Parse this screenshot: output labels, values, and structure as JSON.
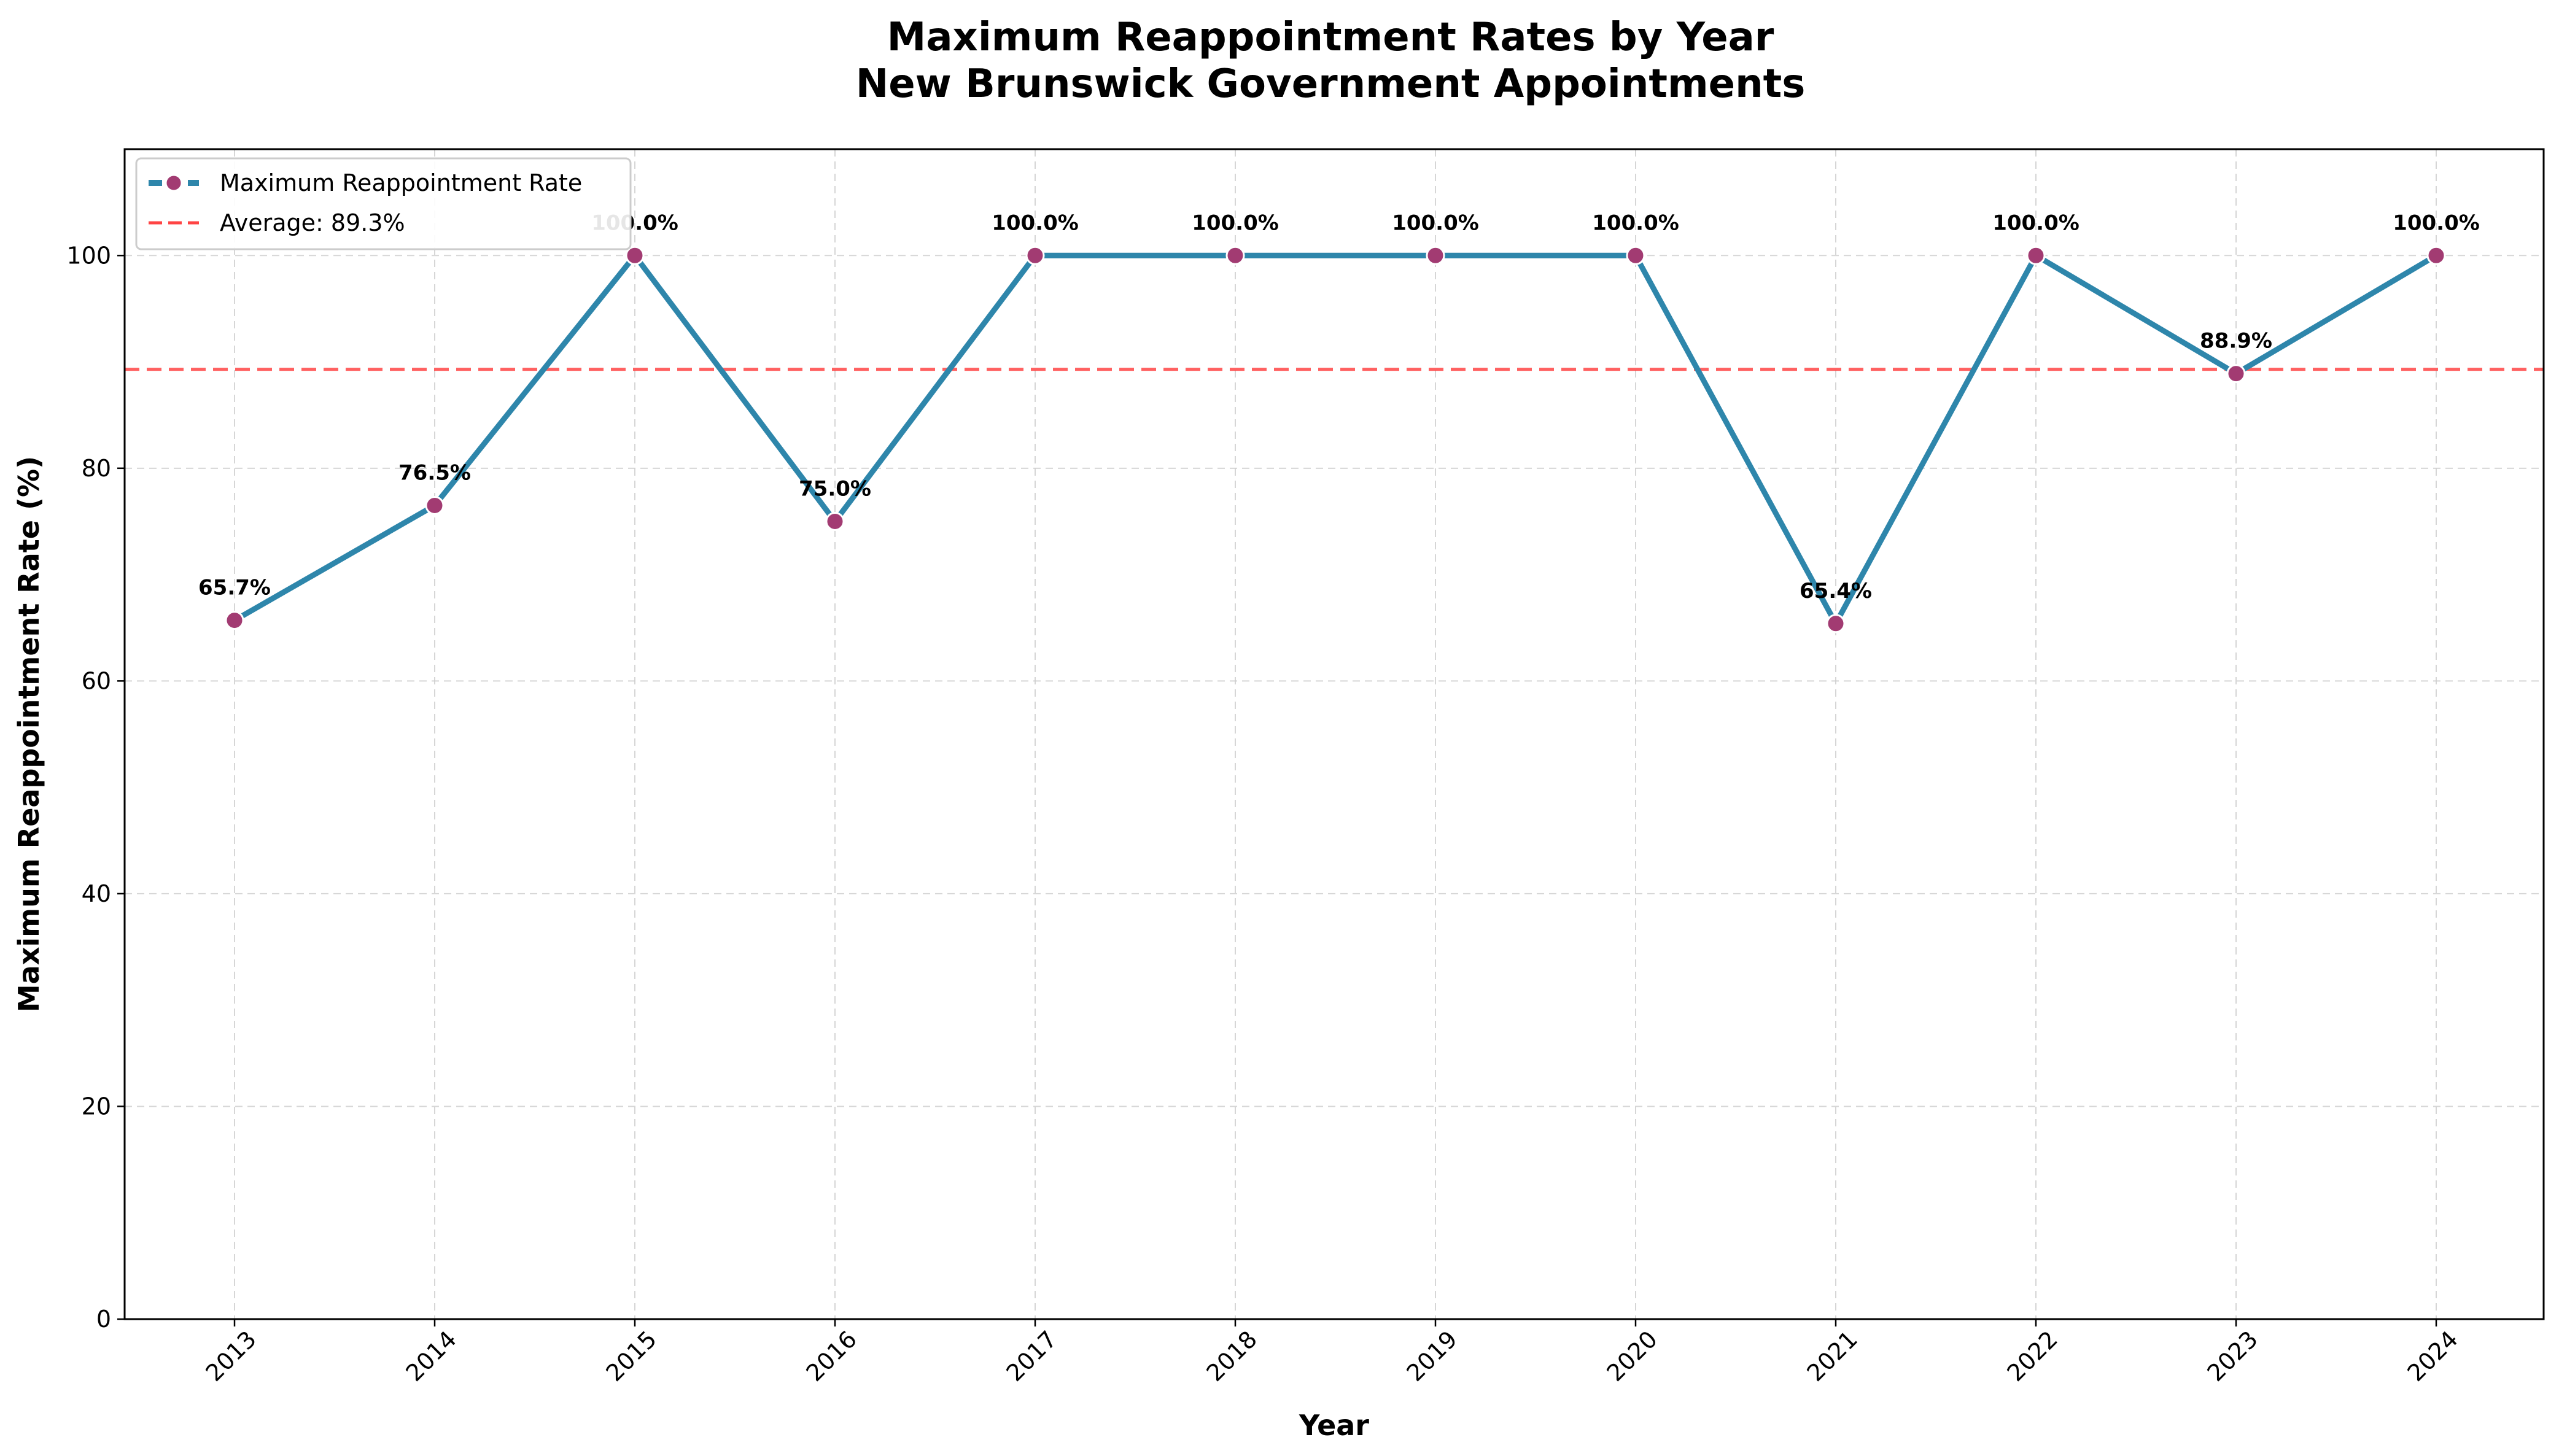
{
  "chart_data": {
    "type": "line",
    "title_line1": "Maximum Reappointment Rates by Year",
    "title_line2": "New Brunswick Government Appointments",
    "xlabel": "Year",
    "ylabel": "Maximum Reappointment Rate (%)",
    "categories": [
      "2013",
      "2014",
      "2015",
      "2016",
      "2017",
      "2018",
      "2019",
      "2020",
      "2021",
      "2022",
      "2023",
      "2024"
    ],
    "series": [
      {
        "name": "Maximum Reappointment Rate",
        "values": [
          65.7,
          76.5,
          100.0,
          75.0,
          100.0,
          100.0,
          100.0,
          100.0,
          65.4,
          100.0,
          88.9,
          100.0
        ],
        "labels": [
          "65.7%",
          "76.5%",
          "100.0%",
          "75.0%",
          "100.0%",
          "100.0%",
          "100.0%",
          "100.0%",
          "65.4%",
          "100.0%",
          "88.9%",
          "100.0%"
        ],
        "line_color": "#2e86ab",
        "marker_color": "#a23b72"
      }
    ],
    "reference_line": {
      "name": "Average: 89.3%",
      "value": 89.3,
      "color": "#ff4444"
    },
    "ylim": [
      0,
      110
    ],
    "yticks": [
      "0",
      "20",
      "40",
      "60",
      "80",
      "100"
    ],
    "grid": true,
    "legend_position": "upper-left"
  }
}
